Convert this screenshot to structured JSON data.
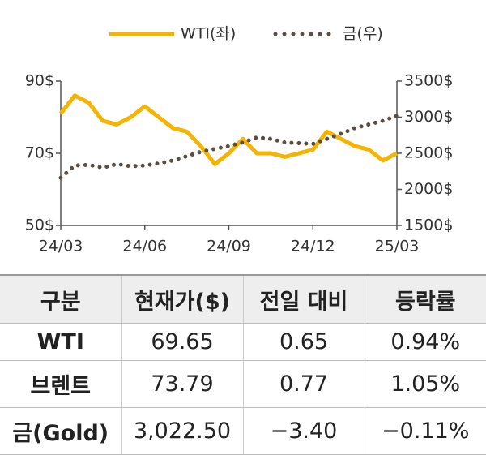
{
  "chart_data": {
    "type": "line",
    "categories": [
      "24/03",
      null,
      null,
      null,
      null,
      null,
      "24/06",
      null,
      null,
      null,
      null,
      null,
      "24/09",
      null,
      null,
      null,
      null,
      null,
      "24/12",
      null,
      null,
      null,
      null,
      null,
      "25/03"
    ],
    "series": [
      {
        "name": "WTI(좌)",
        "color": "#f5b400",
        "style": "solid",
        "values": [
          81,
          86,
          84,
          79,
          78,
          80,
          83,
          80,
          77,
          76,
          72,
          67,
          70,
          74,
          70,
          70,
          69,
          70,
          71,
          76,
          74,
          72,
          71,
          68,
          70
        ]
      },
      {
        "name": "금(우)",
        "color": "#5a4e44",
        "style": "dotted",
        "axis": "y2",
        "values": [
          2160,
          2330,
          2340,
          2300,
          2350,
          2320,
          2330,
          2360,
          2400,
          2460,
          2520,
          2560,
          2600,
          2650,
          2720,
          2700,
          2650,
          2640,
          2630,
          2700,
          2770,
          2850,
          2900,
          2950,
          3020
        ]
      }
    ],
    "ylim": [
      50,
      90
    ],
    "yticks": [
      {
        "value": 50,
        "label": "50$"
      },
      {
        "value": 70,
        "label": "70$"
      },
      {
        "value": 90,
        "label": "90$"
      }
    ],
    "y2lim": [
      1500,
      3500
    ],
    "y2ticks": [
      {
        "value": 1500,
        "label": "1500$"
      },
      {
        "value": 2000,
        "label": "2000$"
      },
      {
        "value": 2500,
        "label": "2500$"
      },
      {
        "value": 3000,
        "label": "3000$"
      },
      {
        "value": 3500,
        "label": "3500$"
      }
    ],
    "legend": "top"
  },
  "table": {
    "header": [
      "구분",
      "현재가($)",
      "전일 대비",
      "등락률"
    ],
    "rows": [
      [
        "WTI",
        "69.65",
        "0.65",
        "0.94%"
      ],
      [
        "브렌트",
        "73.79",
        "0.77",
        "1.05%"
      ],
      [
        "금(Gold)",
        "3,022.50",
        "−3.40",
        "−0.11%"
      ]
    ]
  }
}
